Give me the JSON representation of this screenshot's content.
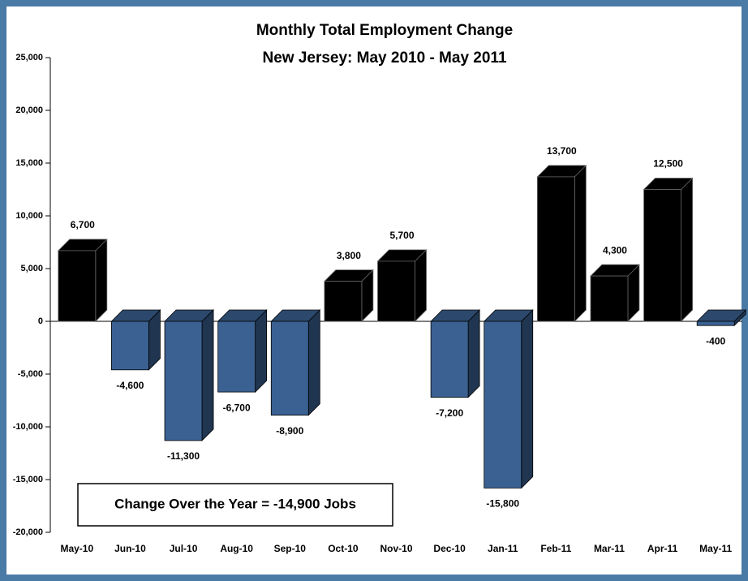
{
  "chart_data": {
    "type": "bar3d",
    "title": "Monthly Total Employment Change",
    "subtitle": "New Jersey: May 2010 - May 2011",
    "annotation": "Change Over the Year = -14,900 Jobs",
    "categories": [
      "May-10",
      "Jun-10",
      "Jul-10",
      "Aug-10",
      "Sep-10",
      "Oct-10",
      "Nov-10",
      "Dec-10",
      "Jan-11",
      "Feb-11",
      "Mar-11",
      "Apr-11",
      "May-11"
    ],
    "values": [
      6700,
      -4600,
      -11300,
      -6700,
      -8900,
      3800,
      5700,
      -7200,
      -15800,
      13700,
      4300,
      12500,
      -400
    ],
    "value_labels": [
      "6,700",
      "-4,600",
      "-11,300",
      "-6,700",
      "-8,900",
      "3,800",
      "5,700",
      "-7,200",
      "-15,800",
      "13,700",
      "4,300",
      "12,500",
      "-400"
    ],
    "positive_color": "#000000",
    "negative_color": "#3a6191",
    "ylim": [
      -20000,
      25000
    ],
    "yticks": [
      {
        "value": -20000,
        "label": "-20,000"
      },
      {
        "value": -15000,
        "label": "-15,000"
      },
      {
        "value": -10000,
        "label": "-10,000"
      },
      {
        "value": -5000,
        "label": "-5,000"
      },
      0,
      {
        "value": 5000,
        "label": "5,000"
      },
      {
        "value": 10000,
        "label": "10,000"
      },
      {
        "value": 15000,
        "label": "15,000"
      },
      {
        "value": 20000,
        "label": "20,000"
      },
      {
        "value": 25000,
        "label": "25,000"
      }
    ]
  }
}
